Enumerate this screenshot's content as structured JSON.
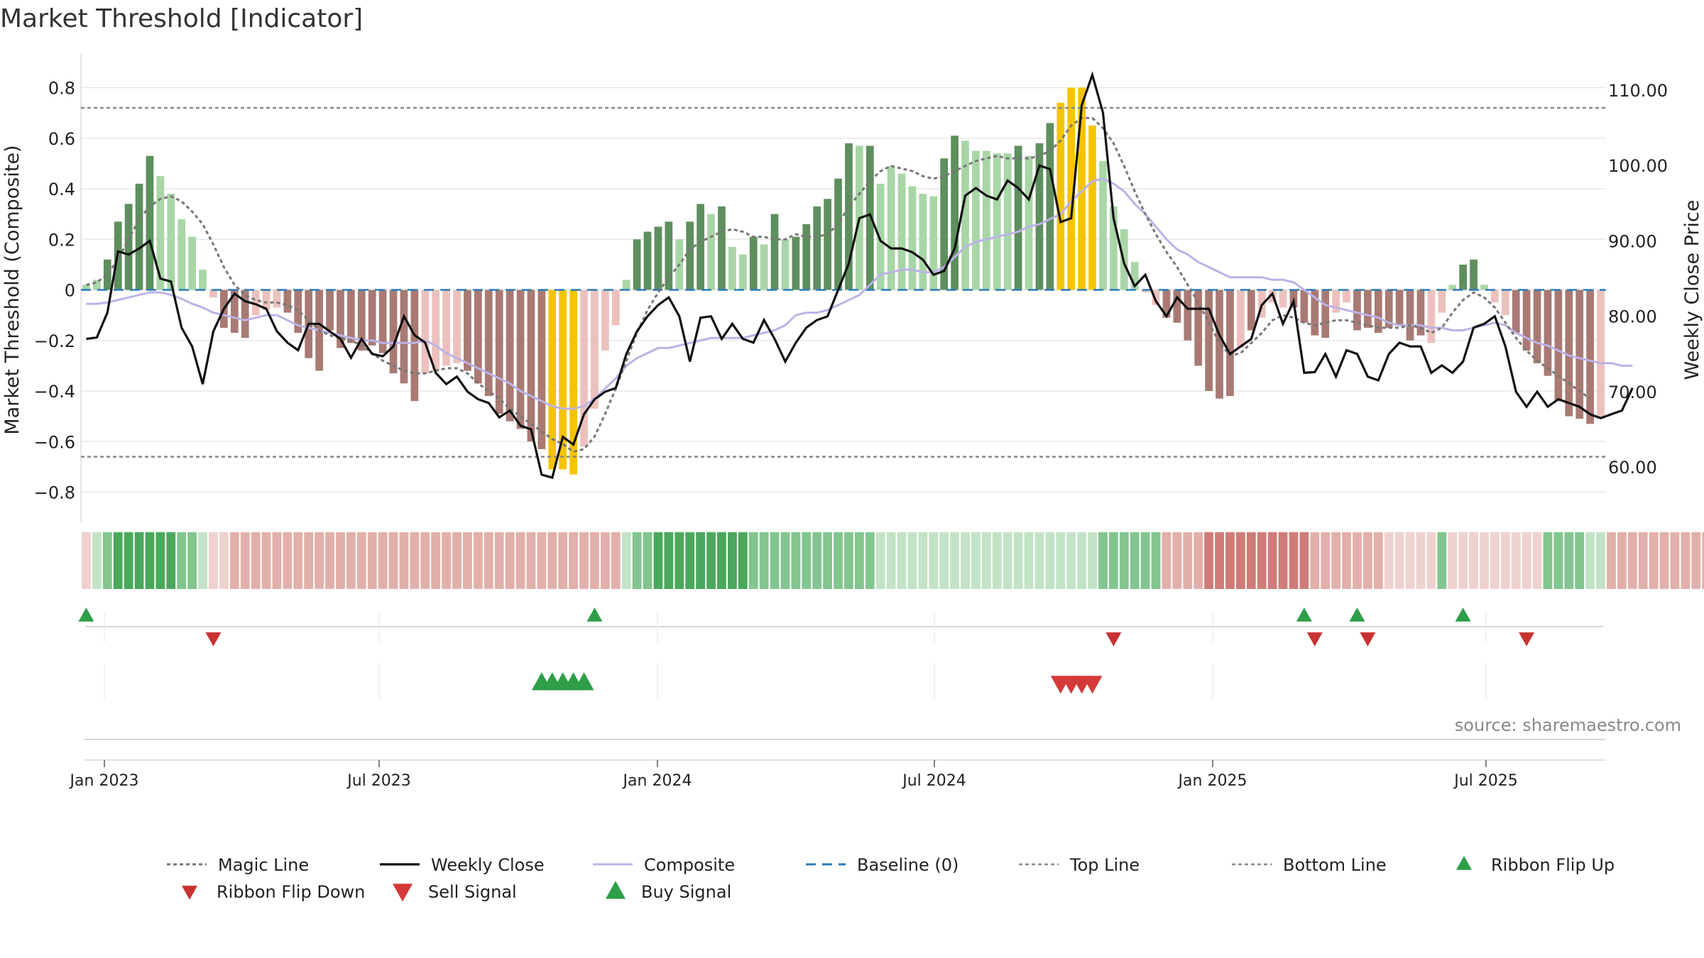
{
  "title": "Market Threshold [Indicator]",
  "source": "source: sharemaestro.com",
  "colors": {
    "gold": "#f5c400",
    "strong_up": "#5e8f5e",
    "weak_up": "#a9d6a6",
    "strong_down": "#a97a74",
    "weak_down": "#ecc1bd",
    "close": "#111111",
    "composite": "#bcb2e6",
    "magic": "#777777",
    "baseline": "#2b7bb9",
    "buy": "#2e9e49",
    "sell": "#d43a3a",
    "grid": "#e8e8e8"
  },
  "chart_data": {
    "type": "bar",
    "x_labels": [
      "Jan 2023",
      "Jul 2023",
      "Jan 2024",
      "Jul 2024",
      "Jan 2025",
      "Jul 2025"
    ],
    "ylabel": "Market Threshold (Composite)",
    "y2label": "Weekly Close Price",
    "ylim": [
      -0.88,
      0.88
    ],
    "y2lim": [
      54,
      113
    ],
    "y_ticks": [
      "0.8",
      "0.6",
      "0.4",
      "0.2",
      "0",
      "−0.2",
      "−0.4",
      "−0.6",
      "−0.8"
    ],
    "y2_ticks": [
      "110.00",
      "100.00",
      "90.00",
      "80.00",
      "70.00",
      "60.00"
    ],
    "top_line": 0.72,
    "bottom_line": -0.66,
    "bars": [
      0.02,
      0.04,
      0.12,
      0.27,
      0.34,
      0.42,
      0.53,
      0.45,
      0.38,
      0.28,
      0.21,
      0.08,
      -0.03,
      -0.15,
      -0.17,
      -0.19,
      -0.1,
      -0.08,
      -0.07,
      -0.09,
      -0.17,
      -0.27,
      -0.32,
      -0.16,
      -0.23,
      -0.21,
      -0.24,
      -0.22,
      -0.25,
      -0.33,
      -0.37,
      -0.44,
      -0.33,
      -0.32,
      -0.3,
      -0.29,
      -0.32,
      -0.37,
      -0.42,
      -0.49,
      -0.52,
      -0.55,
      -0.6,
      -0.63,
      -0.71,
      -0.71,
      -0.73,
      -0.62,
      -0.47,
      -0.24,
      -0.14,
      0.04,
      0.2,
      0.23,
      0.25,
      0.27,
      0.2,
      0.27,
      0.34,
      0.3,
      0.33,
      0.17,
      0.14,
      0.21,
      0.18,
      0.3,
      0.2,
      0.21,
      0.26,
      0.33,
      0.36,
      0.44,
      0.58,
      0.57,
      0.57,
      0.42,
      0.49,
      0.46,
      0.41,
      0.38,
      0.37,
      0.52,
      0.61,
      0.59,
      0.55,
      0.55,
      0.54,
      0.54,
      0.57,
      0.53,
      0.58,
      0.66,
      0.74,
      0.8,
      0.8,
      0.65,
      0.51,
      0.33,
      0.24,
      0.11,
      -0.01,
      -0.06,
      -0.11,
      -0.13,
      -0.2,
      -0.3,
      -0.4,
      -0.43,
      -0.42,
      -0.23,
      -0.16,
      -0.11,
      -0.05,
      -0.07,
      -0.07,
      -0.13,
      -0.18,
      -0.19,
      -0.09,
      -0.05,
      -0.16,
      -0.15,
      -0.17,
      -0.15,
      -0.14,
      -0.2,
      -0.18,
      -0.21,
      -0.09,
      0.02,
      0.1,
      0.12,
      0.02,
      -0.05,
      -0.1,
      -0.17,
      -0.24,
      -0.29,
      -0.34,
      -0.44,
      -0.5,
      -0.51,
      -0.53,
      -0.51
    ],
    "bar_class": [
      "wu",
      "wu",
      "su",
      "su",
      "su",
      "su",
      "su",
      "wu",
      "wu",
      "wu",
      "wu",
      "wu",
      "wd",
      "sd",
      "sd",
      "sd",
      "wd",
      "wd",
      "wd",
      "sd",
      "sd",
      "sd",
      "sd",
      "sd",
      "sd",
      "sd",
      "sd",
      "sd",
      "sd",
      "sd",
      "sd",
      "sd",
      "wd",
      "wd",
      "wd",
      "wd",
      "sd",
      "sd",
      "sd",
      "sd",
      "sd",
      "sd",
      "sd",
      "sd",
      "g",
      "g",
      "g",
      "wd",
      "wd",
      "wd",
      "wd",
      "wu",
      "su",
      "su",
      "su",
      "su",
      "wu",
      "su",
      "su",
      "wu",
      "su",
      "wu",
      "wu",
      "su",
      "wu",
      "su",
      "wu",
      "su",
      "su",
      "su",
      "su",
      "su",
      "su",
      "wu",
      "su",
      "wu",
      "wu",
      "wu",
      "wu",
      "wu",
      "wu",
      "su",
      "su",
      "wu",
      "wu",
      "wu",
      "wu",
      "wu",
      "su",
      "wu",
      "su",
      "su",
      "g",
      "g",
      "g",
      "g",
      "wu",
      "wu",
      "wu",
      "wu",
      "wd",
      "wd",
      "sd",
      "sd",
      "sd",
      "sd",
      "sd",
      "sd",
      "sd",
      "wd",
      "sd",
      "wd",
      "wd",
      "wd",
      "sd",
      "sd",
      "sd",
      "sd",
      "wd",
      "wd",
      "sd",
      "sd",
      "sd",
      "sd",
      "sd",
      "sd",
      "sd",
      "wd",
      "wd",
      "wu",
      "su",
      "su",
      "wu",
      "wd",
      "wd",
      "sd",
      "sd",
      "sd",
      "sd",
      "sd",
      "sd",
      "sd",
      "sd",
      "wd"
    ],
    "series": [
      {
        "name": "Weekly Close",
        "values": [
          77.0,
          77.2,
          80.5,
          88.6,
          88.2,
          89.0,
          90.0,
          85.0,
          84.6,
          78.5,
          76.0,
          71.0,
          78.0,
          81.0,
          83.0,
          82.0,
          81.6,
          81.0,
          78.0,
          76.5,
          75.5,
          79.0,
          79.0,
          78.0,
          77.0,
          74.5,
          77.0,
          75.0,
          74.7,
          76.0,
          80.0,
          77.5,
          76.5,
          72.5,
          71.0,
          72.0,
          70.0,
          69.0,
          68.5,
          66.6,
          67.5,
          65.5,
          65.0,
          59.0,
          58.6,
          64.0,
          63.0,
          67.0,
          69.0,
          70.0,
          70.5,
          75.0,
          78.0,
          80.0,
          81.5,
          82.5,
          80.0,
          74.0,
          79.8,
          80.0,
          77.0,
          79.0,
          77.0,
          76.5,
          79.5,
          77.0,
          74.0,
          76.5,
          78.5,
          79.5,
          80.0,
          83.5,
          87.0,
          93.0,
          93.5,
          90.0,
          89.0,
          89.0,
          88.5,
          87.5,
          85.5,
          86.0,
          89.0,
          96.0,
          97.0,
          96.0,
          95.5,
          98.0,
          97.0,
          95.5,
          100.0,
          99.5,
          92.5,
          93.0,
          108.0,
          112.0,
          107.0,
          93.0,
          87.0,
          84.0,
          85.5,
          82.0,
          80.0,
          82.5,
          81.0,
          81.0,
          81.0,
          77.5,
          75.0,
          76.0,
          77.0,
          81.5,
          83.0,
          79.0,
          82.0,
          72.5,
          72.6,
          75.0,
          72.0,
          75.5,
          75.0,
          72.0,
          71.5,
          75.0,
          76.5,
          76.0,
          76.0,
          72.5,
          73.5,
          72.5,
          74.0,
          78.5,
          79.0,
          80.0,
          76.0,
          70.0,
          68.0,
          70.0,
          68.0,
          69.0,
          68.5,
          68.0,
          67.0,
          66.5,
          67.0,
          67.5,
          70.5
        ]
      },
      {
        "name": "Composite",
        "values": [
          -0.055,
          -0.055,
          -0.05,
          -0.04,
          -0.03,
          -0.02,
          -0.01,
          -0.01,
          -0.02,
          -0.035,
          -0.055,
          -0.07,
          -0.09,
          -0.1,
          -0.11,
          -0.12,
          -0.11,
          -0.1,
          -0.1,
          -0.12,
          -0.14,
          -0.15,
          -0.16,
          -0.17,
          -0.18,
          -0.19,
          -0.2,
          -0.2,
          -0.21,
          -0.21,
          -0.21,
          -0.21,
          -0.2,
          -0.22,
          -0.25,
          -0.27,
          -0.29,
          -0.31,
          -0.33,
          -0.35,
          -0.37,
          -0.4,
          -0.42,
          -0.44,
          -0.46,
          -0.47,
          -0.47,
          -0.46,
          -0.43,
          -0.39,
          -0.35,
          -0.3,
          -0.27,
          -0.25,
          -0.23,
          -0.23,
          -0.22,
          -0.21,
          -0.2,
          -0.19,
          -0.19,
          -0.19,
          -0.19,
          -0.18,
          -0.17,
          -0.16,
          -0.14,
          -0.1,
          -0.09,
          -0.09,
          -0.08,
          -0.06,
          -0.04,
          -0.02,
          0.02,
          0.06,
          0.07,
          0.08,
          0.08,
          0.07,
          0.07,
          0.09,
          0.13,
          0.17,
          0.19,
          0.2,
          0.21,
          0.22,
          0.23,
          0.25,
          0.26,
          0.28,
          0.3,
          0.35,
          0.39,
          0.43,
          0.44,
          0.42,
          0.39,
          0.34,
          0.3,
          0.25,
          0.2,
          0.16,
          0.14,
          0.11,
          0.09,
          0.07,
          0.05,
          0.05,
          0.05,
          0.05,
          0.04,
          0.04,
          0.03,
          0.0,
          -0.03,
          -0.06,
          -0.07,
          -0.08,
          -0.09,
          -0.1,
          -0.11,
          -0.13,
          -0.14,
          -0.14,
          -0.14,
          -0.15,
          -0.15,
          -0.16,
          -0.16,
          -0.15,
          -0.14,
          -0.13,
          -0.14,
          -0.17,
          -0.19,
          -0.21,
          -0.22,
          -0.24,
          -0.26,
          -0.27,
          -0.28,
          -0.29,
          -0.29,
          -0.3,
          -0.3
        ]
      },
      {
        "name": "Magic Line",
        "values": [
          0.02,
          0.03,
          0.06,
          0.12,
          0.2,
          0.28,
          0.33,
          0.36,
          0.37,
          0.35,
          0.31,
          0.26,
          0.18,
          0.09,
          0.02,
          -0.02,
          -0.04,
          -0.05,
          -0.05,
          -0.06,
          -0.08,
          -0.12,
          -0.16,
          -0.18,
          -0.19,
          -0.2,
          -0.22,
          -0.25,
          -0.28,
          -0.3,
          -0.32,
          -0.33,
          -0.33,
          -0.32,
          -0.31,
          -0.31,
          -0.33,
          -0.37,
          -0.4,
          -0.43,
          -0.47,
          -0.5,
          -0.53,
          -0.56,
          -0.59,
          -0.61,
          -0.64,
          -0.63,
          -0.58,
          -0.49,
          -0.39,
          -0.28,
          -0.17,
          -0.08,
          -0.01,
          0.05,
          0.1,
          0.16,
          0.19,
          0.21,
          0.23,
          0.24,
          0.23,
          0.21,
          0.21,
          0.2,
          0.2,
          0.22,
          0.21,
          0.21,
          0.22,
          0.26,
          0.33,
          0.38,
          0.43,
          0.47,
          0.49,
          0.48,
          0.47,
          0.45,
          0.44,
          0.45,
          0.47,
          0.49,
          0.51,
          0.52,
          0.53,
          0.52,
          0.52,
          0.52,
          0.53,
          0.55,
          0.59,
          0.65,
          0.68,
          0.68,
          0.64,
          0.58,
          0.49,
          0.39,
          0.3,
          0.22,
          0.15,
          0.09,
          0.02,
          -0.05,
          -0.13,
          -0.21,
          -0.26,
          -0.25,
          -0.21,
          -0.17,
          -0.12,
          -0.1,
          -0.11,
          -0.13,
          -0.14,
          -0.13,
          -0.12,
          -0.12,
          -0.13,
          -0.14,
          -0.15,
          -0.15,
          -0.15,
          -0.14,
          -0.15,
          -0.17,
          -0.15,
          -0.09,
          -0.04,
          -0.01,
          -0.03,
          -0.07,
          -0.13,
          -0.19,
          -0.24,
          -0.28,
          -0.31,
          -0.34,
          -0.37,
          -0.4,
          -0.43
        ]
      }
    ],
    "ribbon": [
      "wd",
      "wu",
      "mu",
      "su",
      "su",
      "su",
      "su",
      "su",
      "su",
      "mu",
      "mu",
      "wu",
      "wd",
      "wd",
      "md",
      "md",
      "md",
      "md",
      "md",
      "md",
      "md",
      "md",
      "md",
      "md",
      "md",
      "md",
      "md",
      "md",
      "md",
      "md",
      "md",
      "md",
      "md",
      "md",
      "md",
      "md",
      "md",
      "md",
      "md",
      "md",
      "md",
      "md",
      "md",
      "md",
      "md",
      "md",
      "md",
      "md",
      "md",
      "md",
      "md",
      "wu",
      "mu",
      "mu",
      "su",
      "su",
      "su",
      "su",
      "su",
      "su",
      "su",
      "su",
      "su",
      "mu",
      "mu",
      "mu",
      "mu",
      "mu",
      "mu",
      "mu",
      "mu",
      "mu",
      "mu",
      "mu",
      "mu",
      "wu",
      "wu",
      "wu",
      "wu",
      "wu",
      "wu",
      "wu",
      "wu",
      "wu",
      "wu",
      "wu",
      "wu",
      "wu",
      "wu",
      "wu",
      "wu",
      "wu",
      "wu",
      "wu",
      "wu",
      "wu",
      "mu",
      "mu",
      "mu",
      "mu",
      "mu",
      "mu",
      "md",
      "md",
      "md",
      "md",
      "sd",
      "sd",
      "sd",
      "sd",
      "sd",
      "sd",
      "sd",
      "sd",
      "sd",
      "sd",
      "md",
      "md",
      "md",
      "md",
      "md",
      "md",
      "md",
      "wd",
      "wd",
      "wd",
      "wd",
      "wd",
      "mu",
      "wd",
      "wd",
      "wd",
      "wd",
      "wd",
      "wd",
      "wd",
      "wd",
      "wd",
      "mu",
      "mu",
      "mu",
      "mu",
      "wu",
      "wu",
      "md",
      "md",
      "md",
      "md",
      "md",
      "md",
      "md",
      "md",
      "md",
      "md",
      "md",
      "md",
      "md"
    ],
    "signals": {
      "ribbon_flip_up": [
        0,
        48,
        115,
        120,
        130
      ],
      "ribbon_flip_down": [
        12,
        97,
        116,
        121,
        136
      ],
      "buy": [
        43,
        44,
        45,
        46,
        47
      ],
      "sell": [
        92,
        93,
        94,
        95
      ]
    },
    "legend": [
      "Magic Line",
      "Weekly Close",
      "Composite",
      "Baseline (0)",
      "Top Line",
      "Bottom Line",
      "Ribbon Flip Up",
      "Ribbon Flip Down",
      "Sell Signal",
      "Buy Signal"
    ]
  }
}
